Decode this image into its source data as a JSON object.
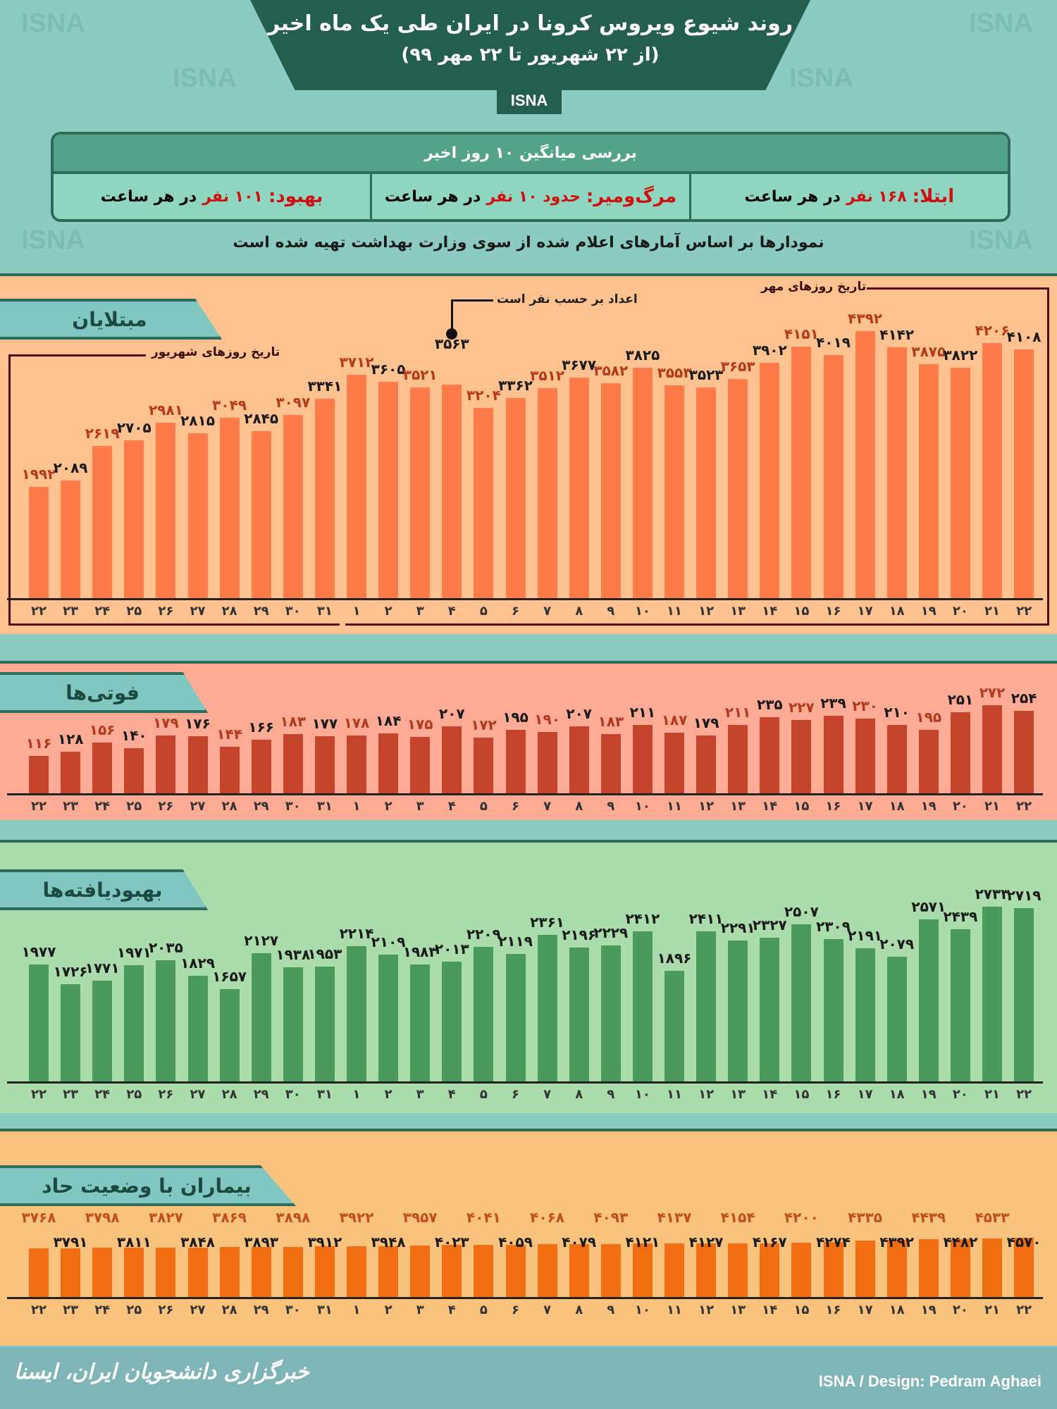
{
  "header": {
    "title": "روند شیوع ویروس کرونا در ایران طی یک ماه اخیر",
    "subtitle": "(از ۲۲ شهریور تا ۲۲ مهر ۹۹)",
    "badge": "ISNA",
    "watermark": "ISNA"
  },
  "summary": {
    "title": "بررسی میانگین ۱۰ روز اخیر",
    "items": [
      {
        "label": "ابتلا:",
        "value": "۱۶۸ نفر",
        "suffix": "در هر ساعت"
      },
      {
        "label": "مرگ‌ومیر:",
        "value": "حدود ۱۰ نفر",
        "suffix": "در هر ساعت"
      },
      {
        "label": "بهبود:",
        "value": "۱۰۱ نفر",
        "suffix": "در هر ساعت"
      }
    ]
  },
  "note": "نمودارها بر اساس آمارهای اعلام شده از سوی وزارت بهداشت تهیه شده است",
  "annotations": {
    "units": "اعداد بر حسب نفر است",
    "shahrivar": "تاریخ روزهای شهریور",
    "mehr": "تاریخ روزهای مهر"
  },
  "days": [
    "۲۲",
    "۲۳",
    "۲۴",
    "۲۵",
    "۲۶",
    "۲۷",
    "۲۸",
    "۲۹",
    "۳۰",
    "۳۱",
    "۱",
    "۲",
    "۳",
    "۴",
    "۵",
    "۶",
    "۷",
    "۸",
    "۹",
    "۱۰",
    "۱۱",
    "۱۲",
    "۱۳",
    "۱۴",
    "۱۵",
    "۱۶",
    "۱۷",
    "۱۸",
    "۱۹",
    "۲۰",
    "۲۱",
    "۲۲"
  ],
  "chart_data": [
    {
      "type": "bar",
      "title": "مبتلایان",
      "colors": {
        "bar": "#ff7c4a",
        "label_alt": "#b5391c",
        "label": "#1a1a1a",
        "bg": "#fdc290"
      },
      "values": [
        1992,
        2089,
        2619,
        2705,
        2981,
        2815,
        3049,
        2845,
        3097,
        3341,
        3712,
        3605,
        3521,
        3563,
        3204,
        3362,
        3512,
        3677,
        3582,
        3825,
        3553,
        3523,
        3653,
        3902,
        4151,
        4019,
        4392,
        4142,
        3875,
        3822,
        4206,
        4108
      ]
    },
    {
      "type": "bar",
      "title": "فوتی‌ها",
      "colors": {
        "bar": "#c4442c",
        "label_alt": "#b03a20",
        "label": "#1a1a1a",
        "bg": "#fdab95"
      },
      "values": [
        116,
        128,
        156,
        140,
        179,
        176,
        144,
        166,
        183,
        177,
        178,
        184,
        175,
        207,
        172,
        195,
        190,
        207,
        183,
        211,
        187,
        179,
        211,
        235,
        227,
        239,
        230,
        210,
        195,
        251,
        272,
        254
      ]
    },
    {
      "type": "bar",
      "title": "بهبودیافته‌ها",
      "colors": {
        "bar": "#4a9a5c",
        "label_alt": "#1a1a1a",
        "label": "#1a1a1a",
        "bg": "#abdcab"
      },
      "values": [
        1977,
        1726,
        1771,
        1971,
        2035,
        1829,
        1657,
        2127,
        1938,
        1953,
        2214,
        2109,
        1983,
        2013,
        2209,
        2119,
        2361,
        2196,
        2229,
        2412,
        1896,
        2411,
        2291,
        2327,
        2507,
        2309,
        2191,
        2079,
        2571,
        2439,
        2733,
        2719
      ]
    },
    {
      "type": "bar",
      "title": "بیماران با وضعیت حاد",
      "colors": {
        "bar": "#f36d12",
        "label_alt": "#c0501a",
        "label": "#1a1a1a",
        "bg": "#f9c27d"
      },
      "values": [
        3768,
        3791,
        3798,
        3811,
        3827,
        3848,
        3869,
        3893,
        3898,
        3912,
        3922,
        3948,
        3957,
        4023,
        4041,
        4059,
        4068,
        4079,
        4093,
        4121,
        4137,
        4127,
        4154,
        4167,
        4200,
        4274,
        4335,
        4392,
        4439,
        4482,
        4533,
        4570
      ]
    }
  ],
  "footer": {
    "logo": "خبرگزاری دانشجویان ایران، ایسنا",
    "credit": "ISNA / Design: Pedram Aghaei"
  }
}
